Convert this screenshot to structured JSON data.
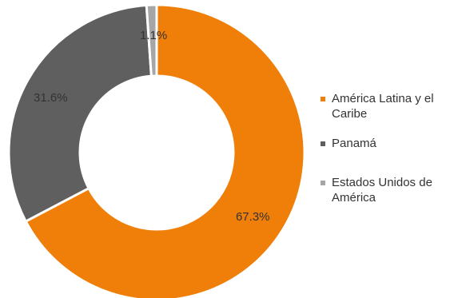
{
  "chart_data": {
    "type": "pie",
    "variant": "donut",
    "title": "",
    "categories": [
      "América Latina y el Caribe",
      "Panamá",
      "Estados Unidos de América"
    ],
    "values": [
      67.3,
      31.6,
      1.1
    ],
    "labels": [
      "67.3%",
      "31.6%",
      "1.1%"
    ],
    "colors": [
      "#F07F09",
      "#5F5F5F",
      "#A6A6A6"
    ],
    "legend_position": "right",
    "start": "top",
    "direction": "clockwise"
  }
}
